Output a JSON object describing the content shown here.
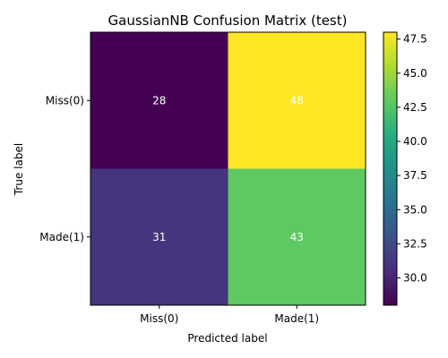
{
  "chart_data": {
    "type": "heatmap",
    "title": "GaussianNB Confusion Matrix (test)",
    "xlabel": "Predicted label",
    "ylabel": "True label",
    "x_categories": [
      "Miss(0)",
      "Made(1)"
    ],
    "y_categories": [
      "Miss(0)",
      "Made(1)"
    ],
    "values": [
      [
        28,
        48
      ],
      [
        31,
        43
      ]
    ],
    "colormap": "viridis",
    "colorbar": {
      "range": [
        28,
        48
      ],
      "ticks": [
        "30.0",
        "32.5",
        "35.0",
        "37.5",
        "40.0",
        "42.5",
        "45.0",
        "47.5"
      ]
    }
  }
}
